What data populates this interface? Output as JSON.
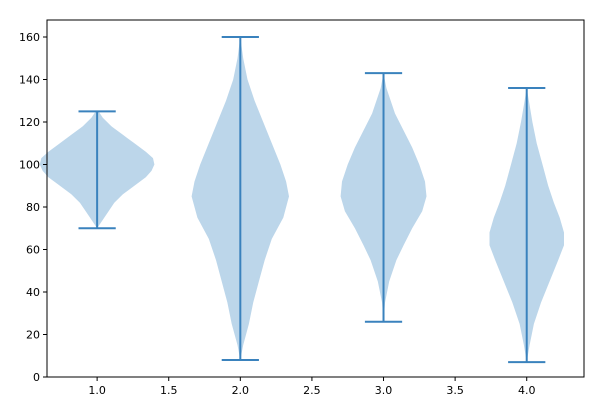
{
  "chart_data": {
    "type": "violin",
    "title": "",
    "xlabel": "",
    "ylabel": "",
    "xlim": [
      0.65,
      4.4
    ],
    "ylim": [
      0,
      168
    ],
    "x_ticks": [
      1.0,
      1.5,
      2.0,
      2.5,
      3.0,
      3.5,
      4.0
    ],
    "x_tick_labels": [
      "1.0",
      "1.5",
      "2.0",
      "2.5",
      "3.0",
      "3.5",
      "4.0"
    ],
    "y_ticks": [
      0,
      20,
      40,
      60,
      80,
      100,
      120,
      140,
      160
    ],
    "y_tick_labels": [
      "0",
      "20",
      "40",
      "60",
      "80",
      "100",
      "120",
      "140",
      "160"
    ],
    "grid": false,
    "colors": {
      "body": "#bcd6ea",
      "lines": "#3a82bd"
    },
    "violins": [
      {
        "position": 1.0,
        "min": 70,
        "max": 125,
        "density": [
          [
            70,
            0.0
          ],
          [
            72,
            0.02
          ],
          [
            75,
            0.05
          ],
          [
            78,
            0.08
          ],
          [
            82,
            0.12
          ],
          [
            86,
            0.18
          ],
          [
            90,
            0.26
          ],
          [
            94,
            0.34
          ],
          [
            97,
            0.38
          ],
          [
            100,
            0.4
          ],
          [
            103,
            0.39
          ],
          [
            106,
            0.34
          ],
          [
            110,
            0.26
          ],
          [
            114,
            0.18
          ],
          [
            118,
            0.1
          ],
          [
            122,
            0.04
          ],
          [
            125,
            0.01
          ]
        ]
      },
      {
        "position": 2.0,
        "min": 8,
        "max": 160,
        "density": [
          [
            8,
            0.0
          ],
          [
            15,
            0.02
          ],
          [
            25,
            0.06
          ],
          [
            35,
            0.09
          ],
          [
            45,
            0.13
          ],
          [
            55,
            0.17
          ],
          [
            65,
            0.22
          ],
          [
            75,
            0.3
          ],
          [
            85,
            0.34
          ],
          [
            92,
            0.32
          ],
          [
            100,
            0.28
          ],
          [
            110,
            0.22
          ],
          [
            120,
            0.16
          ],
          [
            130,
            0.1
          ],
          [
            140,
            0.05
          ],
          [
            150,
            0.02
          ],
          [
            160,
            0.0
          ]
        ]
      },
      {
        "position": 3.0,
        "min": 26,
        "max": 143,
        "density": [
          [
            26,
            0.0
          ],
          [
            35,
            0.01
          ],
          [
            45,
            0.04
          ],
          [
            55,
            0.09
          ],
          [
            62,
            0.14
          ],
          [
            70,
            0.2
          ],
          [
            78,
            0.27
          ],
          [
            85,
            0.3
          ],
          [
            92,
            0.29
          ],
          [
            100,
            0.25
          ],
          [
            108,
            0.2
          ],
          [
            116,
            0.14
          ],
          [
            124,
            0.08
          ],
          [
            130,
            0.05
          ],
          [
            136,
            0.02
          ],
          [
            143,
            0.0
          ]
        ]
      },
      {
        "position": 4.0,
        "min": 7,
        "max": 136,
        "density": [
          [
            7,
            0.0
          ],
          [
            15,
            0.02
          ],
          [
            25,
            0.05
          ],
          [
            35,
            0.1
          ],
          [
            45,
            0.16
          ],
          [
            55,
            0.22
          ],
          [
            62,
            0.26
          ],
          [
            68,
            0.26
          ],
          [
            75,
            0.23
          ],
          [
            82,
            0.19
          ],
          [
            90,
            0.15
          ],
          [
            100,
            0.11
          ],
          [
            110,
            0.07
          ],
          [
            120,
            0.04
          ],
          [
            128,
            0.02
          ],
          [
            136,
            0.0
          ]
        ]
      }
    ]
  }
}
